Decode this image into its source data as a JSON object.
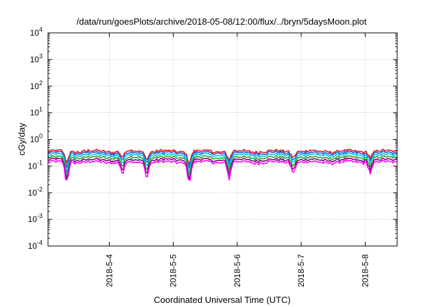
{
  "chart_data": {
    "type": "line",
    "title": "/data/run/goesPlots/archive/2018-05-08/12:00/flux/../bryn/5daysMoon.plot",
    "xlabel": "Coordinated Universal Time (UTC)",
    "ylabel": "cGy/day",
    "yscale": "log",
    "ylim": [
      0.0001,
      10000
    ],
    "y_ticks": [
      {
        "base": "10",
        "exp": "-4",
        "value": 0.0001
      },
      {
        "base": "10",
        "exp": "-3",
        "value": 0.001
      },
      {
        "base": "10",
        "exp": "-2",
        "value": 0.01
      },
      {
        "base": "10",
        "exp": "-1",
        "value": 0.1
      },
      {
        "base": "10",
        "exp": "0",
        "value": 1
      },
      {
        "base": "10",
        "exp": "1",
        "value": 10
      },
      {
        "base": "10",
        "exp": "2",
        "value": 100
      },
      {
        "base": "10",
        "exp": "3",
        "value": 1000
      },
      {
        "base": "10",
        "exp": "4",
        "value": 10000
      }
    ],
    "xlim": [
      "2018-05-03T01:00",
      "2018-05-08T12:00"
    ],
    "x_ticks": [
      {
        "label": "2018-5-4",
        "value": "2018-05-04T00:00"
      },
      {
        "label": "2018-5-5",
        "value": "2018-05-05T00:00"
      },
      {
        "label": "2018-5-6",
        "value": "2018-05-06T00:00"
      },
      {
        "label": "2018-5-7",
        "value": "2018-05-07T00:00"
      },
      {
        "label": "2018-5-8",
        "value": "2018-05-08T00:00"
      }
    ],
    "grid": true,
    "legend": "none",
    "series": [
      {
        "color": "#e41a1c",
        "level": 0.36
      },
      {
        "color": "#1f5fe0",
        "level": 0.31
      },
      {
        "color": "#00c8e8",
        "level": 0.26
      },
      {
        "color": "#2ca02c",
        "level": 0.21
      },
      {
        "color": "#800080",
        "level": 0.17
      },
      {
        "color": "#ff00ff",
        "level": 0.14
      }
    ],
    "dips": [
      {
        "x": "2018-05-03T08:00",
        "factor": 0.35
      },
      {
        "x": "2018-05-04T05:00",
        "factor": 0.55
      },
      {
        "x": "2018-05-04T14:00",
        "factor": 0.5
      },
      {
        "x": "2018-05-05T06:00",
        "factor": 0.33
      },
      {
        "x": "2018-05-05T21:00",
        "factor": 0.45
      },
      {
        "x": "2018-05-06T21:00",
        "factor": 0.6
      },
      {
        "x": "2018-05-08T02:00",
        "factor": 0.6
      }
    ]
  }
}
